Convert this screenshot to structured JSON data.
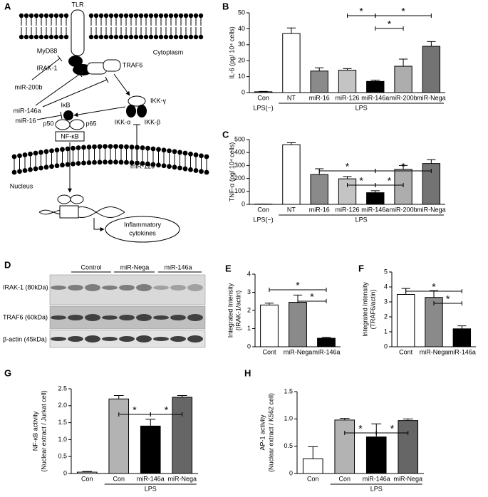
{
  "diagram": {
    "panel": "A",
    "tlr": "TLR",
    "cytoplasm": "Cytoplasm",
    "myd88": "MyD88",
    "mir200b": "miR-200b",
    "irak1": "IRAK-1",
    "traf6": "TRAF6",
    "mir146a": "miR-146a",
    "ikkg": "IKK-γ",
    "ikka": "IKK-α",
    "ikkb": "IKK-β",
    "mir16": "miR-16",
    "ikb": "IκB",
    "p50": "p50",
    "p65": "p65",
    "nfkb": "NF-κB",
    "mir126": "miR-126",
    "nucleus": "Nucleus",
    "cytokines": [
      "Inflammatory",
      "cytokines"
    ]
  },
  "blot": {
    "panel": "D",
    "groups": [
      "Control",
      "miR-Nega",
      "miR-146a"
    ],
    "rows": [
      "IRAK-1 (80kDa)",
      "TRAF6 (60kDa)",
      "β-actin (45kDa)"
    ]
  },
  "chart_data": [
    {
      "panel": "B",
      "type": "bar",
      "ylabel": [
        "IL-6 (pg/ 10⁴ cells)"
      ],
      "categories": [
        "Con",
        "NT",
        "miR-16",
        "miR-126",
        "miR-146a",
        "miR-200b",
        "miR-Nega"
      ],
      "values": [
        0.5,
        37,
        13.5,
        14,
        7,
        16.5,
        29
      ],
      "errors": [
        0.2,
        3.5,
        2,
        1,
        0.8,
        4.5,
        3
      ],
      "colors": [
        "#ffffff",
        "#ffffff",
        "#8a8a8a",
        "#c4c4c4",
        "#000000",
        "#adadad",
        "#737373"
      ],
      "ylim": [
        0,
        50
      ],
      "yticks": [
        0,
        10,
        20,
        30,
        40,
        50
      ],
      "groups": [
        {
          "label": "LPS(−)",
          "start": 0,
          "end": 0
        },
        {
          "label": "LPS",
          "start": 1,
          "end": 6
        }
      ],
      "significance": [
        {
          "from": 4,
          "to": 6,
          "label": "*"
        },
        {
          "from": 3,
          "to": 4,
          "label": "*"
        },
        {
          "from": 4,
          "to": 5,
          "label": "*"
        }
      ]
    },
    {
      "panel": "C",
      "type": "bar",
      "ylabel": [
        "TNF-α (pg/ 10⁴ cells)"
      ],
      "categories": [
        "Con",
        "NT",
        "miR-16",
        "miR-126",
        "miR-146a",
        "miR-200b",
        "miR-Nega"
      ],
      "values": [
        2,
        460,
        230,
        197,
        90,
        270,
        315
      ],
      "errors": [
        0,
        15,
        45,
        18,
        15,
        30,
        30
      ],
      "colors": [
        "#ffffff",
        "#ffffff",
        "#8a8a8a",
        "#c4c4c4",
        "#000000",
        "#adadad",
        "#737373"
      ],
      "ylim": [
        0,
        500
      ],
      "yticks": [
        0,
        100,
        200,
        300,
        400,
        500
      ],
      "groups": [
        {
          "label": "LPS(−)",
          "start": 0,
          "end": 0
        },
        {
          "label": "LPS",
          "start": 1,
          "end": 6
        }
      ],
      "significance": [
        {
          "from": 2,
          "to": 4,
          "label": "*"
        },
        {
          "from": 4,
          "to": 6,
          "label": "*"
        },
        {
          "from": 3,
          "to": 4,
          "label": "*"
        },
        {
          "from": 4,
          "to": 5,
          "label": "*"
        }
      ]
    },
    {
      "panel": "E",
      "type": "bar",
      "ylabel": [
        "Integrated Intensity",
        "(IRAK-1/actin)"
      ],
      "categories": [
        "Cont",
        "miR-Nega",
        "miR-146a"
      ],
      "values": [
        2.3,
        2.45,
        0.47
      ],
      "errors": [
        0.1,
        0.4,
        0.05
      ],
      "colors": [
        "#ffffff",
        "#8a8a8a",
        "#000000"
      ],
      "ylim": [
        0,
        4
      ],
      "yticks": [
        0,
        1,
        2,
        3,
        4
      ],
      "significance": [
        {
          "from": 0,
          "to": 2,
          "label": "*"
        },
        {
          "from": 1,
          "to": 2,
          "label": "*"
        }
      ]
    },
    {
      "panel": "F",
      "type": "bar",
      "ylabel": [
        "Integrated Intensity",
        "(TRAF6/actin)"
      ],
      "categories": [
        "Cont",
        "miR-Nega",
        "miR-146a"
      ],
      "values": [
        3.5,
        3.3,
        1.2
      ],
      "errors": [
        0.4,
        0.45,
        0.2
      ],
      "colors": [
        "#ffffff",
        "#8a8a8a",
        "#000000"
      ],
      "ylim": [
        0,
        5
      ],
      "yticks": [
        0,
        1,
        2,
        3,
        4,
        5
      ],
      "significance": [
        {
          "from": 0,
          "to": 2,
          "label": "*"
        },
        {
          "from": 1,
          "to": 2,
          "label": "*"
        }
      ]
    },
    {
      "panel": "G",
      "type": "bar",
      "ylabel": [
        "NF-κB activity",
        "(Nuclear extract / Jurkat cell)"
      ],
      "categories": [
        "Con",
        "Con",
        "miR-146a",
        "miR-Nega"
      ],
      "values": [
        0.04,
        2.2,
        1.4,
        2.25
      ],
      "errors": [
        0.02,
        0.1,
        0.2,
        0.05
      ],
      "colors": [
        "#ffffff",
        "#b3b3b3",
        "#000000",
        "#666666"
      ],
      "ylim": [
        0,
        2.5
      ],
      "yticks": [
        0,
        0.5,
        {
          "value": 1,
          "label": "1.0"
        },
        1.5,
        {
          "value": 2,
          "label": "2.0"
        },
        2.5
      ],
      "groups": [
        {
          "label": "LPS",
          "start": 1,
          "end": 3
        }
      ],
      "significance": [
        {
          "from": 1,
          "to": 2,
          "label": "*"
        },
        {
          "from": 2,
          "to": 3,
          "label": "*"
        }
      ]
    },
    {
      "panel": "H",
      "type": "bar",
      "ylabel": [
        "AP-1 activity",
        "(Nuclear extract / K562 cell)"
      ],
      "categories": [
        "Con",
        "Con",
        "miR-146a",
        "miR-Nega"
      ],
      "values": [
        0.27,
        0.98,
        0.67,
        0.97
      ],
      "errors": [
        0.22,
        0.03,
        0.24,
        0.03
      ],
      "colors": [
        "#ffffff",
        "#b3b3b3",
        "#000000",
        "#666666"
      ],
      "ylim": [
        0,
        1.5
      ],
      "yticks": [
        0,
        0.5,
        {
          "value": 1,
          "label": "1.0"
        },
        1.5
      ],
      "groups": [
        {
          "label": "LPS",
          "start": 1,
          "end": 3
        }
      ],
      "significance": [
        {
          "from": 1,
          "to": 2,
          "label": "*"
        },
        {
          "from": 2,
          "to": 3,
          "label": "*"
        }
      ]
    }
  ]
}
